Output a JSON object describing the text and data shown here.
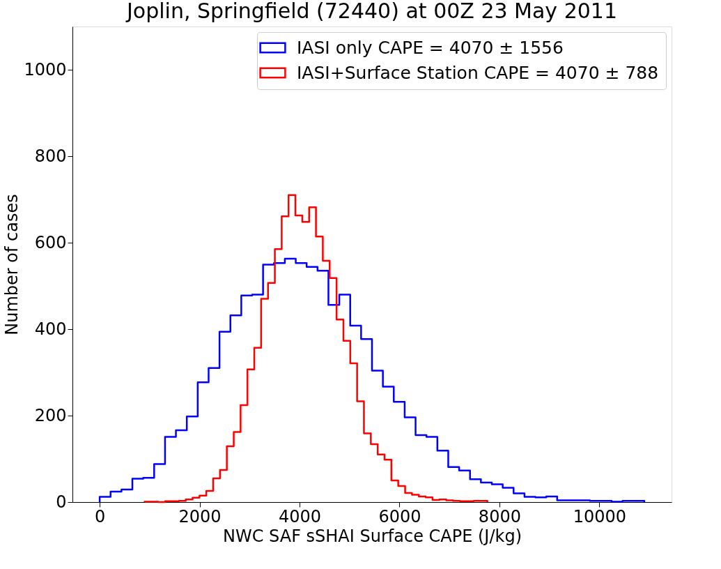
{
  "chart_data": {
    "type": "step",
    "title": "Joplin, Springfield (72440) at 00Z 23 May 2011",
    "xlabel": "NWC SAF sSHAI Surface CAPE (J/kg)",
    "ylabel": "Number of cases",
    "xlim": [
      -545,
      11445
    ],
    "ylim": [
      0,
      1100
    ],
    "xticks": [
      0,
      2000,
      4000,
      6000,
      8000,
      10000
    ],
    "yticks": [
      0,
      200,
      400,
      600,
      800,
      1000
    ],
    "grid": false,
    "legend": "top right",
    "series": [
      {
        "name": "IASI only CAPE = 4070 ± 1556",
        "color": "#0000ff",
        "x": [
          0,
          0,
          218,
          436,
          654,
          872,
          1090,
          1308,
          1526,
          1744,
          1962,
          2180,
          2398,
          2616,
          2834,
          3052,
          3270,
          3488,
          3706,
          3924,
          4142,
          4360,
          4578,
          4796,
          5014,
          5232,
          5450,
          5668,
          5886,
          6104,
          6322,
          6540,
          6758,
          6976,
          7194,
          7412,
          7630,
          7848,
          8066,
          8284,
          8502,
          8720,
          8938,
          9156,
          9374,
          9592,
          9810,
          10028,
          10246,
          10464,
          10682,
          10900
        ],
        "values": [
          0,
          12,
          24,
          29,
          54,
          56,
          88,
          151,
          166,
          198,
          277,
          310,
          394,
          432,
          478,
          480,
          549,
          553,
          563,
          553,
          544,
          535,
          456,
          480,
          408,
          377,
          304,
          267,
          232,
          196,
          155,
          151,
          119,
          81,
          73,
          53,
          45,
          41,
          33,
          20,
          12,
          11,
          13,
          4,
          4,
          4,
          3,
          3,
          1,
          3,
          3,
          0
        ]
      },
      {
        "name": "IASI+Surface Station CAPE = 4070 ± 788",
        "color": "#ff0000",
        "x": [
          899,
          899,
          1036,
          1173,
          1311,
          1448,
          1585,
          1722,
          1859,
          1997,
          2134,
          2271,
          2408,
          2545,
          2683,
          2820,
          2957,
          3094,
          3231,
          3369,
          3506,
          3643,
          3780,
          3917,
          4055,
          4192,
          4329,
          4466,
          4603,
          4741,
          4878,
          5015,
          5152,
          5289,
          5427,
          5564,
          5701,
          5838,
          5975,
          6113,
          6250,
          6387,
          6524,
          6661,
          6799,
          6936,
          7073,
          7210,
          7347,
          7485,
          7622,
          7759
        ],
        "values": [
          0,
          1,
          1,
          0,
          2,
          2,
          3,
          6,
          10,
          15,
          26,
          55,
          74,
          129,
          162,
          224,
          307,
          357,
          470,
          507,
          585,
          661,
          710,
          663,
          648,
          682,
          614,
          558,
          518,
          422,
          373,
          321,
          233,
          159,
          134,
          110,
          98,
          50,
          37,
          21,
          17,
          13,
          11,
          5,
          6,
          4,
          3,
          2,
          2,
          3,
          3,
          0
        ]
      }
    ]
  }
}
